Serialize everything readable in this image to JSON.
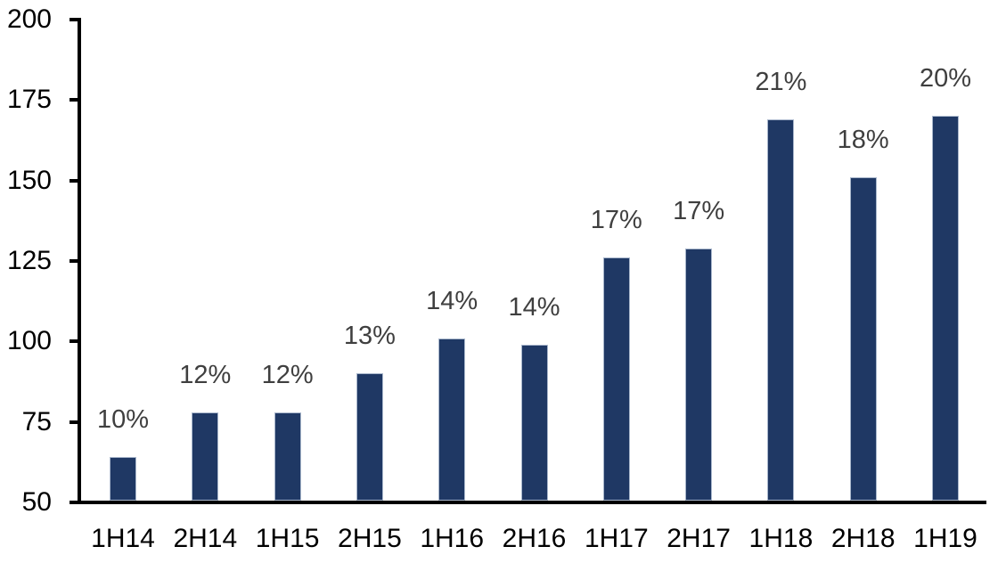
{
  "chart_data": {
    "type": "bar",
    "categories": [
      "1H14",
      "2H14",
      "1H15",
      "2H15",
      "1H16",
      "2H16",
      "1H17",
      "2H17",
      "1H18",
      "2H18",
      "1H19"
    ],
    "values": [
      64,
      78,
      78,
      90,
      101,
      99,
      126,
      129,
      169,
      151,
      170
    ],
    "bar_labels": [
      "10%",
      "12%",
      "12%",
      "13%",
      "14%",
      "14%",
      "17%",
      "17%",
      "21%",
      "18%",
      "20%"
    ],
    "title": "",
    "xlabel": "",
    "ylabel": "",
    "ylim": [
      50,
      200
    ],
    "yticks": [
      50,
      75,
      100,
      125,
      150,
      175,
      200
    ],
    "grid": false,
    "legend": "none",
    "colors": {
      "bar_fill": "#1f3864",
      "bar_border": "#a9b7cc",
      "value_label": "#3f3f3f",
      "axis": "#000000",
      "background": "#ffffff"
    }
  }
}
